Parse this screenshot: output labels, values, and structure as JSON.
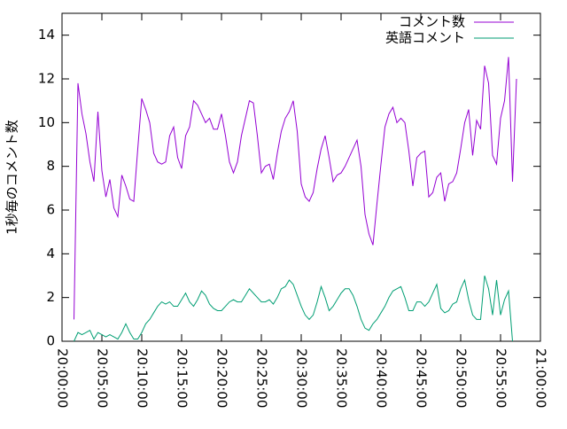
{
  "chart_data": {
    "type": "line",
    "y_label": "1秒毎のコメント数",
    "legend_position": "top-right",
    "grid": false,
    "xlim": [
      "20:00:00",
      "21:00:00"
    ],
    "xticks": [
      "20:00:00",
      "20:05:00",
      "20:10:00",
      "20:15:00",
      "20:20:00",
      "20:25:00",
      "20:30:00",
      "20:35:00",
      "20:40:00",
      "20:45:00",
      "20:50:00",
      "20:55:00",
      "21:00:00"
    ],
    "ylim": [
      0,
      15
    ],
    "yticks": [
      0,
      2,
      4,
      6,
      8,
      10,
      12,
      14
    ],
    "x": [
      "20:01:30",
      "20:02:00",
      "20:02:30",
      "20:03:00",
      "20:03:30",
      "20:04:00",
      "20:04:30",
      "20:05:00",
      "20:05:30",
      "20:06:00",
      "20:06:30",
      "20:07:00",
      "20:07:30",
      "20:08:00",
      "20:08:30",
      "20:09:00",
      "20:09:30",
      "20:10:00",
      "20:10:30",
      "20:11:00",
      "20:11:30",
      "20:12:00",
      "20:12:30",
      "20:13:00",
      "20:13:30",
      "20:14:00",
      "20:14:30",
      "20:15:00",
      "20:15:30",
      "20:16:00",
      "20:16:30",
      "20:17:00",
      "20:17:30",
      "20:18:00",
      "20:18:30",
      "20:19:00",
      "20:19:30",
      "20:20:00",
      "20:20:30",
      "20:21:00",
      "20:21:30",
      "20:22:00",
      "20:22:30",
      "20:23:00",
      "20:23:30",
      "20:24:00",
      "20:24:30",
      "20:25:00",
      "20:25:30",
      "20:26:00",
      "20:26:30",
      "20:27:00",
      "20:27:30",
      "20:28:00",
      "20:28:30",
      "20:29:00",
      "20:29:30",
      "20:30:00",
      "20:30:30",
      "20:31:00",
      "20:31:30",
      "20:32:00",
      "20:32:30",
      "20:33:00",
      "20:33:30",
      "20:34:00",
      "20:34:30",
      "20:35:00",
      "20:35:30",
      "20:36:00",
      "20:36:30",
      "20:37:00",
      "20:37:30",
      "20:38:00",
      "20:38:30",
      "20:39:00",
      "20:39:30",
      "20:40:00",
      "20:40:30",
      "20:41:00",
      "20:41:30",
      "20:42:00",
      "20:42:30",
      "20:43:00",
      "20:43:30",
      "20:44:00",
      "20:44:30",
      "20:45:00",
      "20:45:30",
      "20:46:00",
      "20:46:30",
      "20:47:00",
      "20:47:30",
      "20:48:00",
      "20:48:30",
      "20:49:00",
      "20:49:30",
      "20:50:00",
      "20:50:30",
      "20:51:00",
      "20:51:30",
      "20:52:00",
      "20:52:30",
      "20:53:00",
      "20:53:30",
      "20:54:00",
      "20:54:30",
      "20:55:00",
      "20:55:30",
      "20:56:00",
      "20:56:30",
      "20:57:00"
    ],
    "series": [
      {
        "name": "コメント数",
        "color": "#9400d3",
        "values": [
          1.0,
          11.8,
          10.4,
          9.5,
          8.2,
          7.3,
          10.5,
          7.8,
          6.6,
          7.4,
          6.1,
          5.7,
          7.6,
          7.1,
          6.5,
          6.4,
          8.8,
          11.1,
          10.6,
          10.0,
          8.6,
          8.2,
          8.1,
          8.2,
          9.4,
          9.8,
          8.4,
          7.9,
          9.4,
          9.8,
          11.0,
          10.8,
          10.4,
          10.0,
          10.2,
          9.7,
          9.7,
          10.4,
          9.4,
          8.2,
          7.7,
          8.2,
          9.4,
          10.2,
          11.0,
          10.9,
          9.4,
          7.7,
          8.0,
          8.1,
          7.4,
          8.6,
          9.6,
          10.2,
          10.5,
          11.0,
          9.6,
          7.2,
          6.6,
          6.4,
          6.8,
          7.9,
          8.8,
          9.4,
          8.4,
          7.3,
          7.6,
          7.7,
          8.0,
          8.4,
          8.8,
          9.2,
          8.0,
          5.8,
          4.9,
          4.4,
          6.3,
          8.1,
          9.8,
          10.4,
          10.7,
          10.0,
          10.2,
          10.0,
          8.7,
          7.1,
          8.4,
          8.6,
          8.7,
          6.6,
          6.8,
          7.5,
          7.7,
          6.4,
          7.2,
          7.3,
          7.7,
          8.8,
          10.0,
          10.6,
          8.5,
          10.1,
          9.7,
          12.6,
          11.8,
          8.5,
          8.1,
          10.2,
          11.0,
          13.0,
          7.3,
          12.0
        ]
      },
      {
        "name": "英語コメント",
        "color": "#009e73",
        "values": [
          0,
          0.4,
          0.3,
          0.4,
          0.5,
          0.1,
          0.4,
          0.3,
          0.2,
          0.3,
          0.2,
          0.1,
          0.4,
          0.8,
          0.4,
          0.1,
          0.1,
          0.4,
          0.8,
          1.0,
          1.3,
          1.6,
          1.8,
          1.7,
          1.8,
          1.6,
          1.6,
          1.9,
          2.2,
          1.8,
          1.6,
          1.9,
          2.3,
          2.1,
          1.7,
          1.5,
          1.4,
          1.4,
          1.6,
          1.8,
          1.9,
          1.8,
          1.8,
          2.1,
          2.4,
          2.2,
          2.0,
          1.8,
          1.8,
          1.9,
          1.7,
          2.0,
          2.4,
          2.5,
          2.8,
          2.6,
          2.1,
          1.6,
          1.2,
          1.0,
          1.2,
          1.8,
          2.5,
          2.0,
          1.4,
          1.6,
          1.9,
          2.2,
          2.4,
          2.4,
          2.1,
          1.6,
          1.0,
          0.6,
          0.5,
          0.8,
          1.0,
          1.3,
          1.6,
          2.0,
          2.3,
          2.4,
          2.5,
          2.0,
          1.4,
          1.4,
          1.8,
          1.8,
          1.6,
          1.8,
          2.2,
          2.6,
          1.5,
          1.3,
          1.4,
          1.7,
          1.8,
          2.4,
          2.8,
          1.9,
          1.2,
          1.0,
          1.0,
          3.0,
          2.4,
          1.2,
          2.8,
          1.2,
          1.9,
          2.3,
          0.0,
          null
        ]
      }
    ]
  }
}
